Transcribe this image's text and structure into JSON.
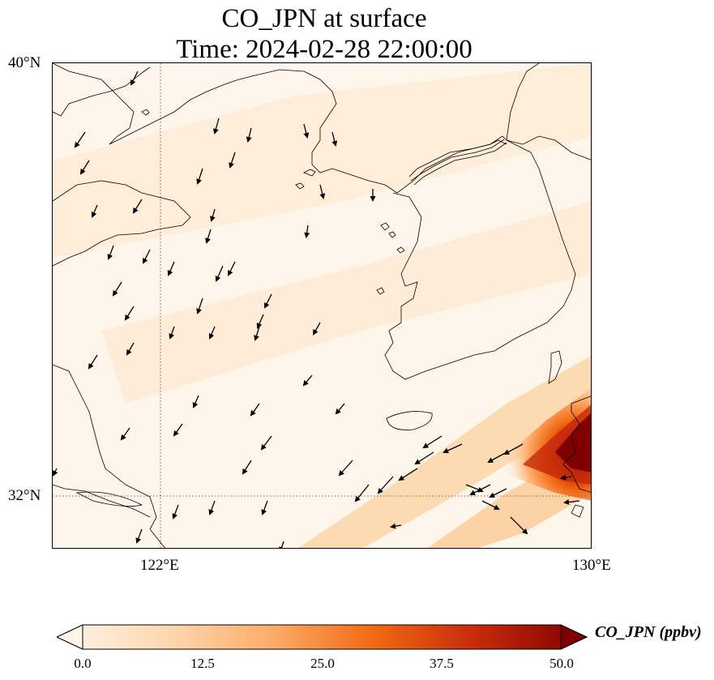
{
  "title": {
    "line1": "CO_JPN at surface",
    "line2": "Time: 2024-02-28 22:00:00"
  },
  "axes": {
    "lat_labels": [
      "40°N",
      "32°N"
    ],
    "lon_labels": [
      "122°E",
      "130°E"
    ],
    "lat_range": [
      31,
      40
    ],
    "lon_range": [
      120,
      130
    ],
    "gridlines": "dotted, at 122°E and 32°N"
  },
  "colorbar": {
    "label": "CO_JPN (ppbv)",
    "ticks": [
      "0.0",
      "12.5",
      "25.0",
      "37.5",
      "50.0"
    ],
    "min": 0,
    "max": 50,
    "extend": "both",
    "colormap": [
      "#fff5eb",
      "#fdd9b3",
      "#fdae6b",
      "#f16913",
      "#c4280b",
      "#7f0000"
    ]
  },
  "colors": {
    "background_low": "#fef6ea",
    "plume_high": "#7f0000",
    "coastline": "#000000",
    "wind_arrow": "#000000"
  }
}
